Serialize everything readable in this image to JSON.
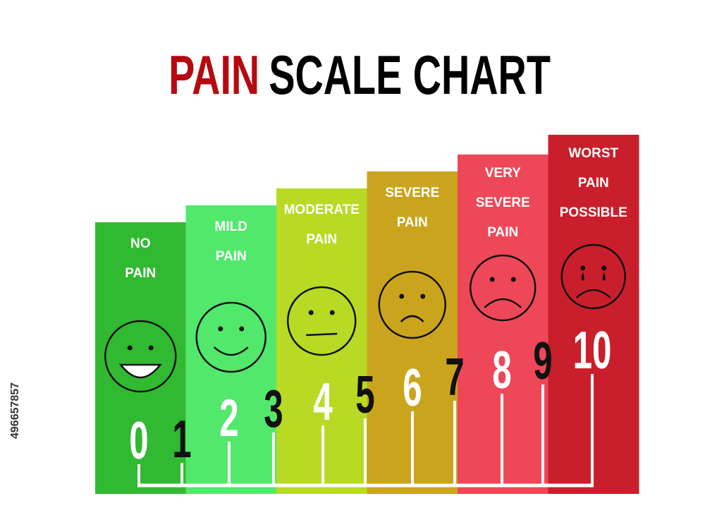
{
  "header": {
    "title_red": "PAIN",
    "title_black": "SCALE CHART"
  },
  "levels": [
    {
      "label": [
        "NO",
        "PAIN"
      ]
    },
    {
      "label": [
        "MILD",
        "PAIN"
      ]
    },
    {
      "label": [
        "MODERATE",
        "PAIN"
      ]
    },
    {
      "label": [
        "SEVERE",
        "PAIN"
      ]
    },
    {
      "label": [
        "VERY",
        "SEVERE",
        "PAIN"
      ]
    },
    {
      "label": [
        "WORST",
        "PAIN",
        "POSSIBLE"
      ]
    }
  ],
  "numbers": [
    0,
    1,
    2,
    3,
    4,
    5,
    6,
    7,
    8,
    9,
    10
  ],
  "stock_id": "496657857"
}
